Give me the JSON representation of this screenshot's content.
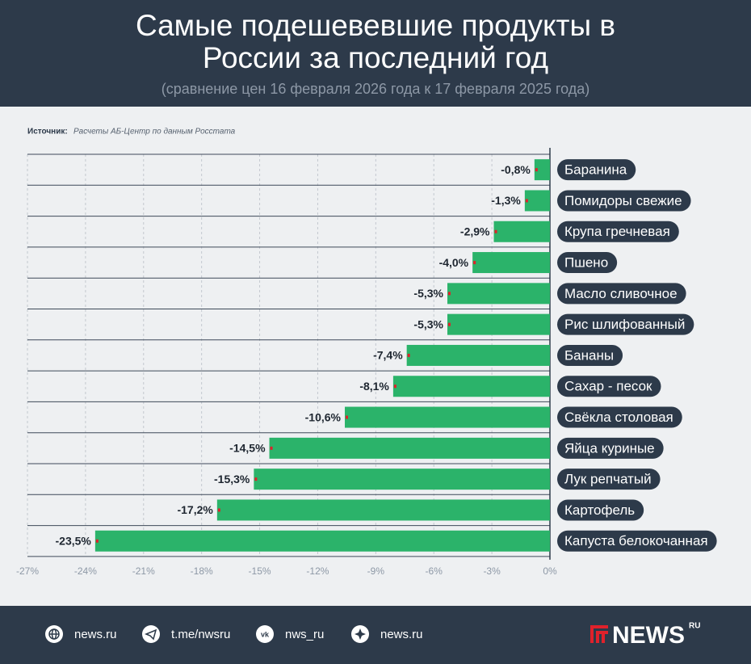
{
  "chart_data": {
    "type": "bar",
    "orientation": "horizontal",
    "title": "Самые подешевевшие продукты в России за последний год",
    "subtitle": "(сравнение цен 16 февраля 2026 года к 17 февраля 2025 года)",
    "source_label": "Источник:",
    "source": "Расчеты АБ-Центр по данным Росстата",
    "categories": [
      "Баранина",
      "Помидоры свежие",
      "Крупа гречневая",
      "Пшено",
      "Масло сливочное",
      "Рис шлифованный",
      "Бананы",
      "Сахар - песок",
      "Свёкла столовая",
      "Яйца куриные",
      "Лук репчатый",
      "Картофель",
      "Капуста белокочанная"
    ],
    "values": [
      -0.8,
      -1.3,
      -2.9,
      -4.0,
      -5.3,
      -5.3,
      -7.4,
      -8.1,
      -10.6,
      -14.5,
      -15.3,
      -17.2,
      -23.5
    ],
    "value_labels": [
      "-0,8%",
      "-1,3%",
      "-2,9%",
      "-4,0%",
      "-5,3%",
      "-5,3%",
      "-7,4%",
      "-8,1%",
      "-10,6%",
      "-14,5%",
      "-15,3%",
      "-17,2%",
      "-23,5%"
    ],
    "color": "#2bb36a",
    "marker_color": "#e0212b",
    "xlim": [
      -27,
      0
    ],
    "xticks": [
      {
        "value": -27,
        "label": "-27%"
      },
      {
        "value": -24,
        "label": "-24%"
      },
      {
        "value": -21,
        "label": "-21%"
      },
      {
        "value": -18,
        "label": "-18%"
      },
      {
        "value": -15,
        "label": "-15%"
      },
      {
        "value": -12,
        "label": "-12%"
      },
      {
        "value": -9,
        "label": "-9%"
      },
      {
        "value": -6,
        "label": "-6%"
      },
      {
        "value": -3,
        "label": "-3%"
      },
      {
        "value": 0,
        "label": "0%"
      }
    ],
    "grid": true
  },
  "footer": {
    "links": [
      "news.ru",
      "t.me/nwsru",
      "nws_ru",
      "news.ru"
    ],
    "logo": "NEWS",
    "logo_sup": "RU"
  }
}
